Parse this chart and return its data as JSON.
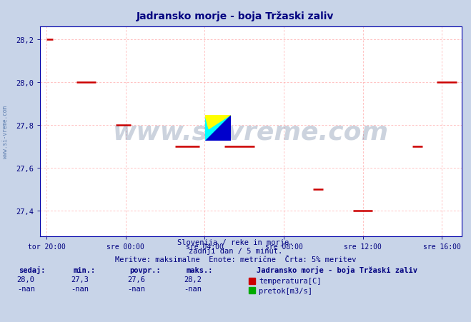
{
  "title": "Jadransko morje - boja Tržaski zaliv",
  "title_color": "#000080",
  "bg_color": "#c8d4e8",
  "plot_bg_color": "#ffffff",
  "grid_color": "#ffaaaa",
  "axis_color": "#0000aa",
  "xlabel_ticks": [
    "tor 20:00",
    "sre 00:00",
    "sre 04:00",
    "sre 08:00",
    "sre 12:00",
    "sre 16:00"
  ],
  "x_tick_positions": [
    0,
    240,
    480,
    720,
    960,
    1200
  ],
  "xlim": [
    -20,
    1260
  ],
  "ylim": [
    27.28,
    28.26
  ],
  "yticks": [
    27.4,
    27.6,
    27.8,
    28.0,
    28.2
  ],
  "ylabel_color": "#000080",
  "temp_color": "#cc0000",
  "pretok_color": "#00aa00",
  "watermark_text": "www.si-vreme.com",
  "watermark_color": "#1a3a6a",
  "footer_line1": "Slovenija / reke in morje.",
  "footer_line2": "zadnji dan / 5 minut.",
  "footer_line3": "Meritve: maksimalne  Enote: metrične  Črta: 5% meritev",
  "footer_color": "#000080",
  "sidebar_text": "www.si-vreme.com",
  "sidebar_color": "#6080b0",
  "legend_title": "Jadransko morje - boja Tržaski zaliv",
  "legend_title_color": "#000080",
  "table_headers": [
    "sedaj:",
    "min.:",
    "povpr.:",
    "maks.:"
  ],
  "table_row1": [
    "28,0",
    "27,3",
    "27,6",
    "28,2"
  ],
  "table_row2": [
    "-nan",
    "-nan",
    "-nan",
    "-nan"
  ],
  "table_color": "#000080",
  "temp_segments": [
    {
      "x": [
        0,
        18
      ],
      "y": 28.2
    },
    {
      "x": [
        90,
        150
      ],
      "y": 28.0
    },
    {
      "x": [
        210,
        255
      ],
      "y": 27.8
    },
    {
      "x": [
        390,
        465
      ],
      "y": 27.7
    },
    {
      "x": [
        540,
        630
      ],
      "y": 27.7
    },
    {
      "x": [
        810,
        840
      ],
      "y": 27.5
    },
    {
      "x": [
        930,
        990
      ],
      "y": 27.4
    },
    {
      "x": [
        1110,
        1140
      ],
      "y": 27.7
    },
    {
      "x": [
        1185,
        1245
      ],
      "y": 28.0
    }
  ],
  "dpi": 100,
  "fig_width": 6.59,
  "fig_height": 4.52
}
